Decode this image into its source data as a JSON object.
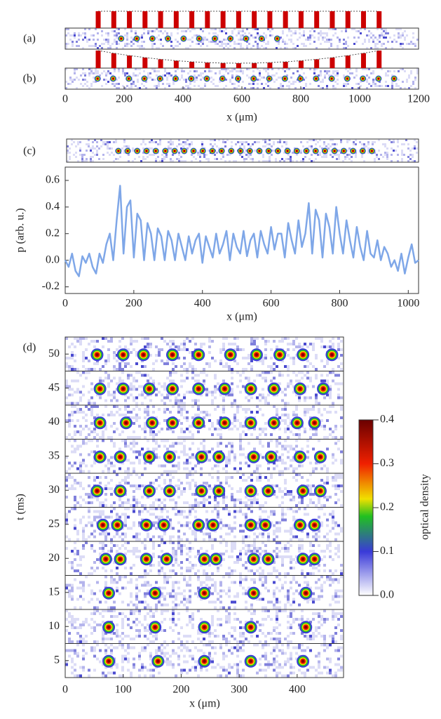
{
  "chart_data": [
    {
      "type": "strip",
      "panel_labels": [
        "(a)",
        "(b)"
      ],
      "xlabel": "x (μm)",
      "xlim": [
        0,
        1200
      ],
      "xticks": [
        0,
        200,
        400,
        600,
        800,
        1000,
        1200
      ],
      "lattice_color": "#cc0000",
      "lattice_x": [
        112,
        165,
        218,
        271,
        324,
        377,
        430,
        483,
        536,
        589,
        642,
        695,
        748,
        801,
        854,
        907,
        960,
        1013,
        1066
      ],
      "blobs_a": [
        190,
        243,
        296,
        349,
        402,
        455,
        508,
        561,
        614,
        667,
        720
      ],
      "blobs_b": [
        110,
        163,
        216,
        269,
        322,
        375,
        428,
        481,
        534,
        587,
        640,
        693,
        746,
        799,
        852,
        905,
        958,
        1011,
        1064,
        1117
      ]
    },
    {
      "type": "line",
      "panel_label": "(c)",
      "xlabel": "x (μm)",
      "ylabel": "p (arb. u.)",
      "color": "#7fa7e8",
      "xlim": [
        0,
        1030
      ],
      "ylim": [
        -0.25,
        0.7
      ],
      "xticks": [
        0,
        200,
        400,
        600,
        800,
        1000
      ],
      "yticks": [
        -0.2,
        {
          "value": 0,
          "label": "0.0"
        },
        0.2,
        0.4,
        0.6
      ],
      "strip_blobs": [
        155,
        182,
        210,
        237,
        264,
        292,
        319,
        347,
        374,
        401,
        429,
        456,
        484,
        511,
        538,
        566,
        593,
        620,
        648,
        675,
        703,
        730,
        757,
        785,
        812,
        839,
        867,
        894
      ],
      "x": [
        0,
        10,
        20,
        30,
        40,
        50,
        60,
        70,
        80,
        90,
        100,
        110,
        120,
        130,
        140,
        150,
        160,
        170,
        180,
        190,
        200,
        210,
        220,
        230,
        240,
        250,
        260,
        270,
        280,
        290,
        300,
        310,
        320,
        330,
        340,
        350,
        360,
        370,
        380,
        390,
        400,
        410,
        420,
        430,
        440,
        450,
        460,
        470,
        480,
        490,
        500,
        510,
        520,
        530,
        540,
        550,
        560,
        570,
        580,
        590,
        600,
        610,
        620,
        630,
        640,
        650,
        660,
        670,
        680,
        690,
        700,
        710,
        720,
        730,
        740,
        750,
        760,
        770,
        780,
        790,
        800,
        810,
        820,
        830,
        840,
        850,
        860,
        870,
        880,
        890,
        900,
        910,
        920,
        930,
        940,
        950,
        960,
        970,
        980,
        990,
        1000,
        1010,
        1020,
        1030
      ],
      "values": [
        0.0,
        -0.05,
        0.05,
        -0.08,
        -0.12,
        0.03,
        -0.02,
        0.05,
        -0.05,
        -0.1,
        0.05,
        -0.02,
        0.12,
        0.2,
        0.0,
        0.3,
        0.56,
        0.05,
        0.4,
        0.45,
        0.02,
        0.35,
        0.3,
        0.0,
        0.28,
        0.2,
        0.0,
        0.24,
        0.18,
        0.0,
        0.22,
        0.15,
        0.0,
        0.2,
        0.1,
        0.0,
        0.18,
        0.05,
        0.15,
        0.2,
        -0.02,
        0.18,
        0.1,
        0.02,
        0.2,
        0.05,
        0.12,
        0.22,
        0.0,
        0.2,
        0.1,
        0.05,
        0.22,
        0.03,
        0.15,
        0.2,
        0.02,
        0.22,
        0.12,
        0.05,
        0.25,
        0.08,
        0.2,
        0.2,
        0.02,
        0.28,
        0.15,
        0.05,
        0.3,
        0.1,
        0.2,
        0.43,
        0.05,
        0.38,
        0.3,
        0.02,
        0.35,
        0.25,
        0.05,
        0.4,
        0.2,
        0.05,
        0.3,
        0.15,
        0.02,
        0.25,
        0.1,
        0.0,
        0.22,
        0.05,
        0.02,
        0.15,
        0.0,
        0.1,
        0.05,
        -0.05,
        0.0,
        -0.08,
        0.05,
        -0.1,
        0.02,
        0.12,
        -0.02,
        0.0
      ]
    },
    {
      "type": "frames",
      "panel_label": "(d)",
      "xlabel": "x (μm)",
      "ylabel": "t (ms)",
      "xlim": [
        0,
        480
      ],
      "xticks": [
        0,
        100,
        200,
        300,
        400
      ],
      "rows": [
        50,
        45,
        40,
        35,
        30,
        25,
        20,
        15,
        10,
        5
      ],
      "blobs": [
        [
          55,
          100,
          135,
          185,
          230,
          285,
          330,
          370,
          410,
          460
        ],
        [
          60,
          100,
          145,
          185,
          230,
          275,
          320,
          360,
          405,
          445
        ],
        [
          60,
          105,
          150,
          185,
          230,
          275,
          320,
          360,
          400,
          430
        ],
        [
          60,
          95,
          145,
          180,
          235,
          265,
          325,
          355,
          405,
          440
        ],
        [
          55,
          95,
          145,
          180,
          235,
          265,
          320,
          350,
          410,
          440
        ],
        [
          65,
          90,
          140,
          170,
          230,
          255,
          320,
          345,
          405,
          430
        ],
        [
          70,
          95,
          140,
          175,
          240,
          260,
          325,
          350,
          410,
          430
        ],
        [
          75,
          155,
          240,
          325,
          415
        ],
        [
          75,
          155,
          240,
          320,
          415
        ],
        [
          75,
          160,
          240,
          320,
          410
        ]
      ],
      "colorbar": {
        "label": "optical density",
        "lim": [
          0,
          0.4
        ],
        "ticks": [
          {
            "value": 0,
            "label": "0.0"
          },
          0.1,
          0.2,
          0.3,
          0.4
        ]
      }
    }
  ]
}
